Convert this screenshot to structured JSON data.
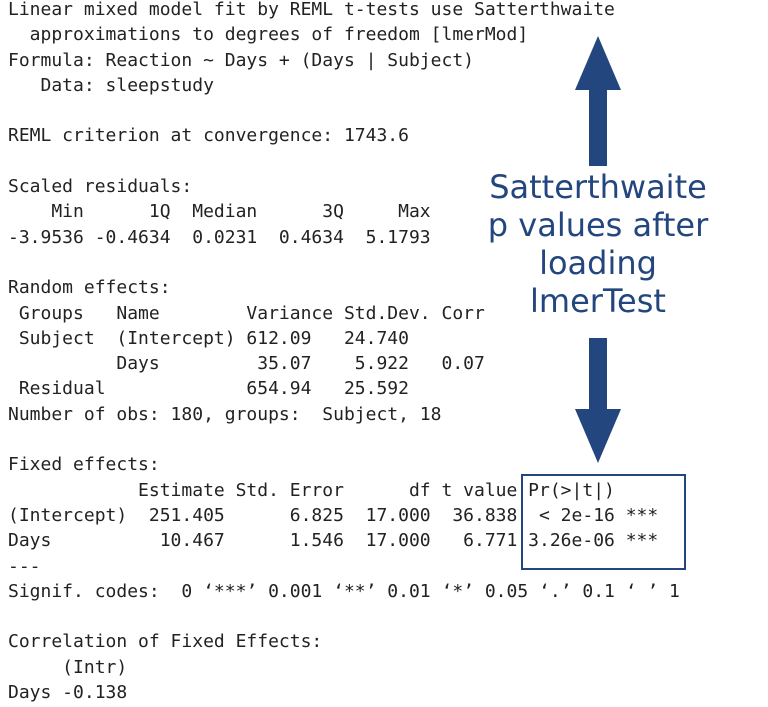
{
  "console": {
    "blocks": [
      {
        "lines": [
          "Linear mixed model fit by REML t-tests use Satterthwaite",
          "  approximations to degrees of freedom [lmerMod]",
          "Formula: Reaction ~ Days + (Days | Subject)",
          "   Data: sleepstudy"
        ]
      },
      {
        "lines": [
          "REML criterion at convergence: 1743.6"
        ]
      },
      {
        "lines": [
          "Scaled residuals:",
          "    Min      1Q  Median      3Q     Max",
          "-3.9536 -0.4634  0.0231  0.4634  5.1793"
        ]
      },
      {
        "lines": [
          "Random effects:",
          " Groups   Name        Variance Std.Dev. Corr",
          " Subject  (Intercept) 612.09   24.740",
          "          Days         35.07    5.922   0.07",
          " Residual             654.94   25.592",
          "Number of obs: 180, groups:  Subject, 18"
        ]
      },
      {
        "lines": [
          "Fixed effects:",
          "            Estimate Std. Error      df t value Pr(>|t|)",
          "(Intercept)  251.405      6.825  17.000  36.838  < 2e-16 ***",
          "Days          10.467      1.546  17.000   6.771 3.26e-06 ***",
          "---",
          "Signif. codes:  0 ‘***’ 0.001 ‘**’ 0.01 ‘*’ 0.05 ‘.’ 0.1 ‘ ’ 1"
        ]
      },
      {
        "lines": [
          "Correlation of Fixed Effects:",
          "     (Intr)",
          "Days -0.138"
        ]
      }
    ]
  },
  "annotation": {
    "lines": [
      "Satterthwaite",
      "p values after",
      "loading",
      "lmerTest"
    ]
  }
}
